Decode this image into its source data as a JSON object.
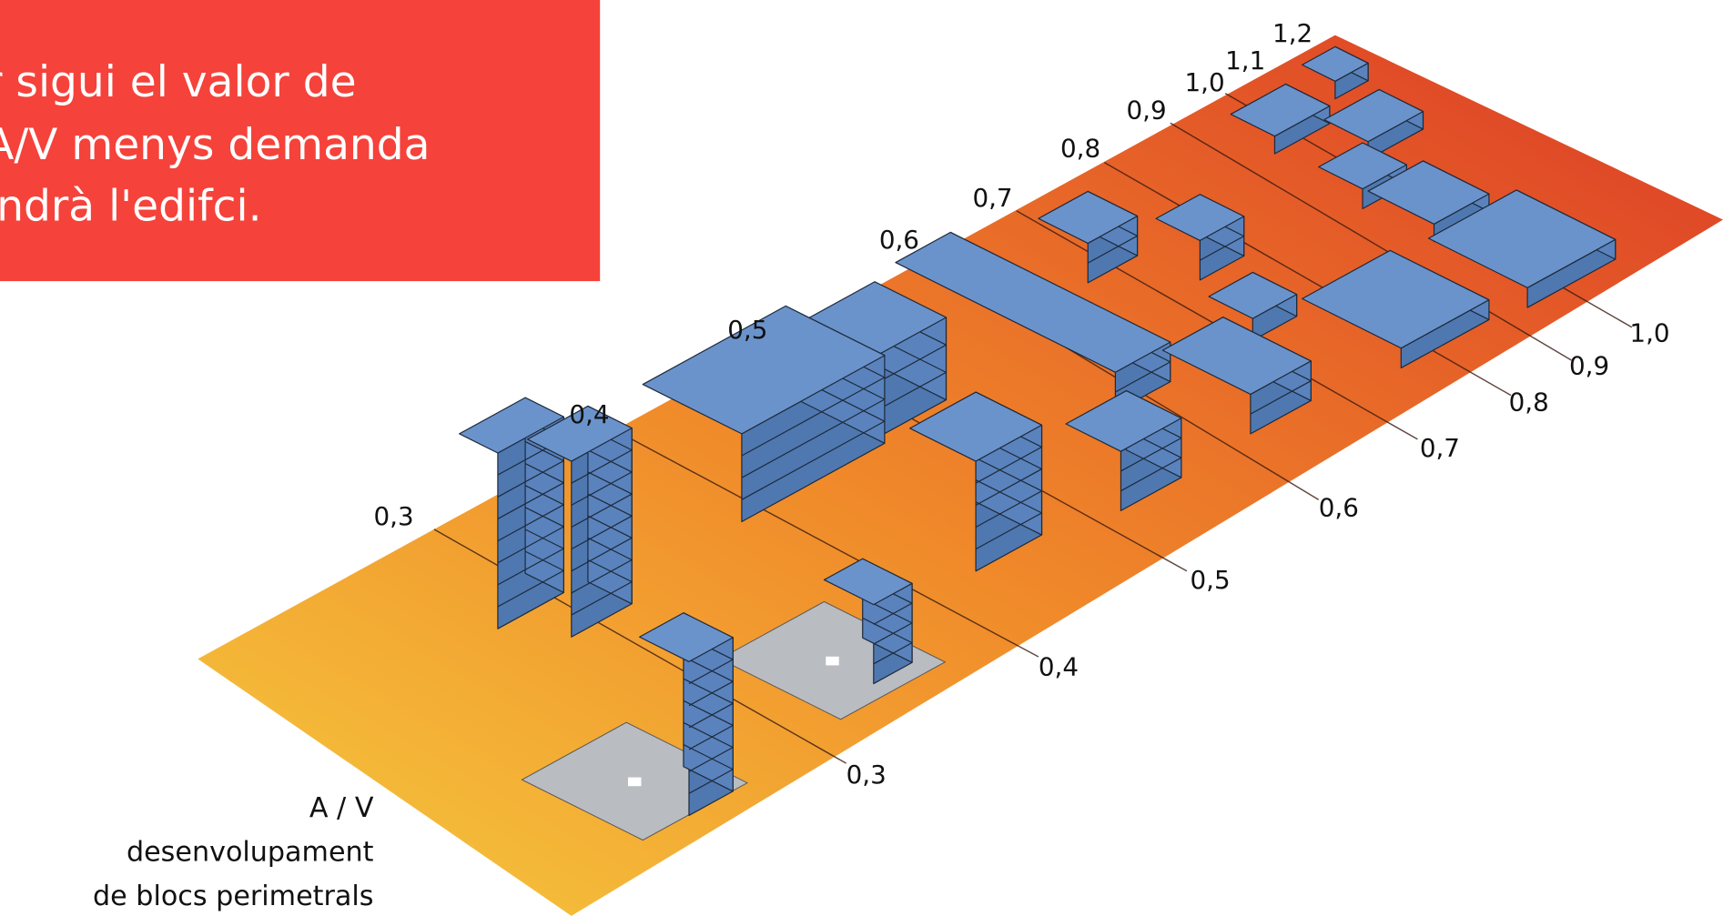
{
  "text_box": {
    "lines": [
      "r sigui el valor de",
      "A/V menys demanda",
      "indrà l'edifci."
    ]
  },
  "left_labels": [
    "0,3",
    "0,4",
    "0,5",
    "0,6",
    "0,7",
    "0,8",
    "0,9",
    "1,0",
    "1,1",
    "1,2"
  ],
  "right_labels": [
    "0,3",
    "0,4",
    "0,5",
    "0,6",
    "0,7",
    "0,8",
    "0,9",
    "1,0"
  ],
  "caption": {
    "lines": [
      "A / V",
      "desenvolupament",
      "de blocs perimetrals"
    ]
  }
}
